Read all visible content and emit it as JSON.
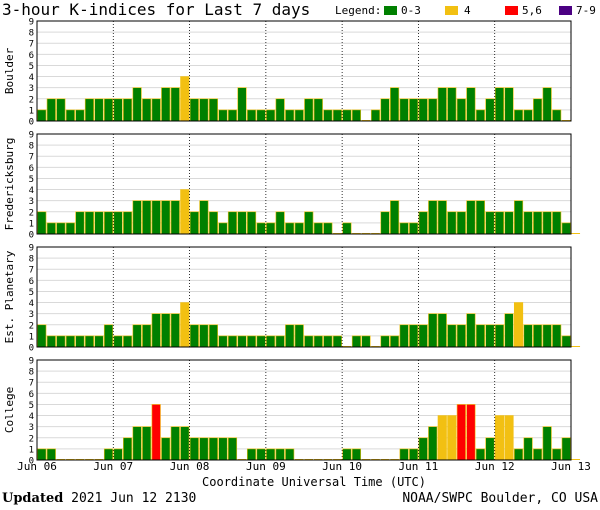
{
  "header": {
    "title": "3-hour K-indices for Last 7 days",
    "legend_label": "Legend:",
    "legend_items": [
      {
        "label": "0-3",
        "color": "#008000"
      },
      {
        "label": "4",
        "color": "#f2c012"
      },
      {
        "label": "5,6",
        "color": "#ff0000"
      },
      {
        "label": "7-9",
        "color": "#4b0082"
      }
    ]
  },
  "footer": {
    "updated_label": "Updated",
    "updated_value": "2021 Jun 12 2130",
    "source": "NOAA/SWPC Boulder, CO USA"
  },
  "chart_data": {
    "type": "bar",
    "xlabel": "Coordinate Universal Time (UTC)",
    "x_tick_labels": [
      "Jun 06",
      "Jun 07",
      "Jun 08",
      "Jun 09",
      "Jun 10",
      "Jun 11",
      "Jun 12",
      "Jun 13"
    ],
    "ylim": [
      0,
      9
    ],
    "y_ticks": [
      0,
      1,
      2,
      3,
      4,
      5,
      6,
      7,
      8,
      9
    ],
    "bars_per_day": 8,
    "panels": [
      {
        "name": "Boulder",
        "values": [
          1,
          2,
          2,
          1,
          1,
          2,
          2,
          2,
          2,
          2,
          3,
          2,
          2,
          3,
          3,
          4,
          2,
          2,
          2,
          1,
          1,
          3,
          1,
          1,
          1,
          2,
          1,
          1,
          2,
          2,
          1,
          1,
          1,
          1,
          0,
          1,
          2,
          3,
          2,
          2,
          2,
          2,
          3,
          3,
          2,
          3,
          1,
          2,
          3,
          3,
          1,
          1,
          2,
          3,
          1,
          0
        ]
      },
      {
        "name": "Fredericksburg",
        "values": [
          2,
          1,
          1,
          1,
          2,
          2,
          2,
          2,
          2,
          2,
          3,
          3,
          3,
          3,
          3,
          4,
          2,
          3,
          2,
          1,
          2,
          2,
          2,
          1,
          1,
          2,
          1,
          1,
          2,
          1,
          1,
          0,
          1,
          0,
          0,
          0,
          2,
          3,
          1,
          1,
          2,
          3,
          3,
          2,
          2,
          3,
          3,
          2,
          2,
          2,
          3,
          2,
          2,
          2,
          2,
          1,
          0
        ]
      },
      {
        "name": "Est. Planetary",
        "values": [
          2,
          1,
          1,
          1,
          1,
          1,
          1,
          2,
          1,
          1,
          2,
          2,
          3,
          3,
          3,
          4,
          2,
          2,
          2,
          1,
          1,
          1,
          1,
          1,
          1,
          1,
          2,
          2,
          1,
          1,
          1,
          1,
          0,
          1,
          1,
          0,
          1,
          1,
          2,
          2,
          2,
          3,
          3,
          2,
          2,
          3,
          2,
          2,
          2,
          3,
          4,
          2,
          2,
          2,
          2,
          1,
          0
        ]
      },
      {
        "name": "College",
        "values": [
          1,
          1,
          0,
          0,
          0,
          0,
          0,
          1,
          1,
          2,
          3,
          3,
          5,
          2,
          3,
          3,
          2,
          2,
          2,
          2,
          2,
          0,
          1,
          1,
          1,
          1,
          1,
          0,
          0,
          0,
          0,
          0,
          1,
          1,
          0,
          0,
          0,
          0,
          1,
          1,
          2,
          3,
          4,
          4,
          5,
          5,
          1,
          2,
          4,
          4,
          1,
          2,
          1,
          3,
          1,
          2,
          0
        ]
      }
    ]
  }
}
